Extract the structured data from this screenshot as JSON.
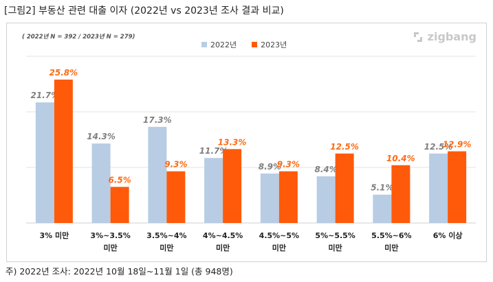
{
  "figure": {
    "title": "[그림2] 부동산 관련 대출 이자 (2022년 vs 2023년 조사 결과 비교)",
    "sample_note": "( 2022년 N = 392 / 2023년 N = 279)",
    "brand": "zigbang",
    "footnote": "주) 2022년 조사: 2022년 10월 18일~11월 1일 (총 948명)"
  },
  "chart_data": {
    "type": "bar",
    "title": "",
    "xlabel": "",
    "ylabel": "",
    "ylim": [
      0,
      30
    ],
    "grid": true,
    "legend_position": "top-center",
    "categories": [
      [
        "3% 미만"
      ],
      [
        "3%~3.5%",
        "미만"
      ],
      [
        "3.5%~4%",
        "미만"
      ],
      [
        "4%~4.5%",
        "미만"
      ],
      [
        "4.5%~5%",
        "미만"
      ],
      [
        "5%~5.5%",
        "미만"
      ],
      [
        "5.5%~6%",
        "미만"
      ],
      [
        "6% 이상"
      ]
    ],
    "series": [
      {
        "name": "2022년",
        "color": "#b8cce4",
        "values": [
          21.7,
          14.3,
          17.3,
          11.7,
          8.9,
          8.4,
          5.1,
          12.5
        ],
        "labels": [
          "21.7%",
          "14.3%",
          "17.3%",
          "11.7%",
          "8.9%",
          "8.4%",
          "5.1%",
          "12.5%"
        ]
      },
      {
        "name": "2023년",
        "color": "#ff5a0a",
        "values": [
          25.8,
          6.5,
          9.3,
          13.3,
          9.3,
          12.5,
          10.4,
          12.9
        ],
        "labels": [
          "25.8%",
          "6.5%",
          "9.3%",
          "13.3%",
          "9.3%",
          "12.5%",
          "10.4%",
          "12.9%"
        ]
      }
    ]
  }
}
